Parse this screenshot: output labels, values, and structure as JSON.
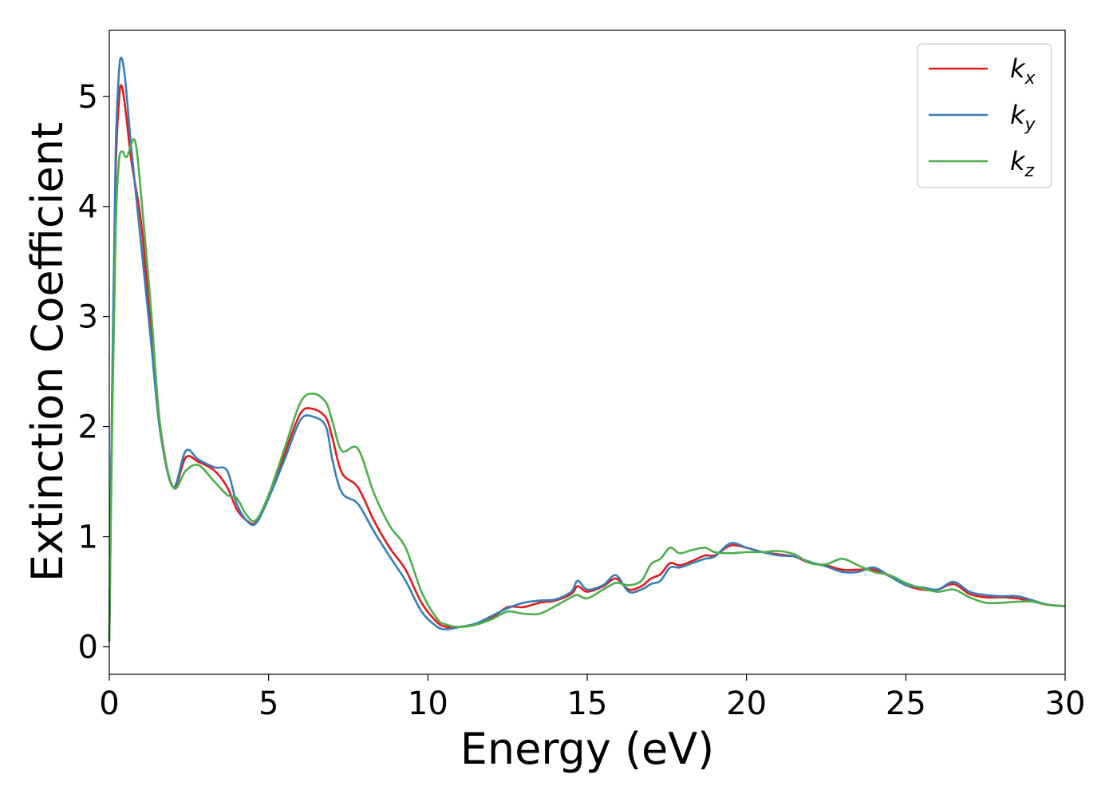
{
  "chart_data": {
    "type": "line",
    "xlabel": "Energy (eV)",
    "ylabel": "Extinction Coefficient",
    "xlim": [
      0,
      30
    ],
    "ylim": [
      -0.25,
      5.6
    ],
    "xticks": [
      "0",
      "5",
      "10",
      "15",
      "20",
      "25",
      "30"
    ],
    "yticks": [
      "0",
      "1",
      "2",
      "3",
      "4",
      "5"
    ],
    "grid": false,
    "legend_position": "top-right",
    "series": [
      {
        "name": "k_x",
        "base": "k",
        "sub": "x",
        "color": "#e41a1c",
        "x": [
          0,
          0.1,
          0.2,
          0.3,
          0.38,
          0.5,
          0.7,
          1.0,
          1.3,
          1.6,
          2.0,
          2.4,
          2.8,
          3.3,
          3.7,
          4.0,
          4.3,
          4.6,
          5.0,
          5.5,
          6.0,
          6.4,
          6.8,
          7.0,
          7.3,
          7.8,
          8.3,
          8.8,
          9.3,
          9.8,
          10.3,
          10.6,
          11.0,
          11.5,
          12.0,
          12.5,
          13.0,
          13.5,
          14.0,
          14.5,
          14.7,
          15.0,
          15.5,
          15.9,
          16.3,
          16.7,
          17.0,
          17.3,
          17.6,
          17.9,
          18.3,
          18.7,
          19.0,
          19.5,
          20.0,
          20.5,
          21.0,
          21.5,
          22.0,
          22.5,
          23.0,
          23.5,
          24.0,
          24.5,
          25.0,
          25.5,
          26.0,
          26.5,
          27.0,
          27.5,
          28.0,
          28.5,
          29.0,
          29.5,
          30.0
        ],
        "y": [
          0.05,
          2.5,
          4.3,
          4.95,
          5.1,
          4.9,
          4.4,
          3.85,
          2.9,
          2.0,
          1.45,
          1.72,
          1.68,
          1.6,
          1.45,
          1.25,
          1.15,
          1.13,
          1.35,
          1.75,
          2.12,
          2.16,
          2.08,
          1.9,
          1.58,
          1.45,
          1.15,
          0.9,
          0.7,
          0.4,
          0.22,
          0.18,
          0.18,
          0.2,
          0.26,
          0.36,
          0.36,
          0.4,
          0.42,
          0.48,
          0.55,
          0.5,
          0.55,
          0.62,
          0.52,
          0.55,
          0.62,
          0.66,
          0.76,
          0.74,
          0.78,
          0.83,
          0.83,
          0.92,
          0.9,
          0.86,
          0.84,
          0.82,
          0.76,
          0.74,
          0.7,
          0.7,
          0.7,
          0.64,
          0.56,
          0.52,
          0.52,
          0.57,
          0.48,
          0.45,
          0.45,
          0.44,
          0.41,
          0.38,
          0.37
        ]
      },
      {
        "name": "k_y",
        "base": "k",
        "sub": "y",
        "color": "#377eb8",
        "x": [
          0,
          0.1,
          0.2,
          0.3,
          0.38,
          0.5,
          0.7,
          1.0,
          1.3,
          1.6,
          2.0,
          2.4,
          2.8,
          3.3,
          3.7,
          4.0,
          4.3,
          4.6,
          5.0,
          5.5,
          6.0,
          6.4,
          6.8,
          7.0,
          7.3,
          7.8,
          8.3,
          8.8,
          9.3,
          9.8,
          10.3,
          10.6,
          11.0,
          11.5,
          12.0,
          12.5,
          13.0,
          13.5,
          14.0,
          14.5,
          14.7,
          15.0,
          15.5,
          15.9,
          16.3,
          16.7,
          17.0,
          17.3,
          17.6,
          17.9,
          18.3,
          18.7,
          19.0,
          19.5,
          20.0,
          20.5,
          21.0,
          21.5,
          22.0,
          22.5,
          23.0,
          23.5,
          24.0,
          24.5,
          25.0,
          25.5,
          26.0,
          26.5,
          27.0,
          27.5,
          28.0,
          28.5,
          29.0,
          29.5,
          30.0
        ],
        "y": [
          0.05,
          2.6,
          4.5,
          5.2,
          5.35,
          5.15,
          4.5,
          3.65,
          2.8,
          1.95,
          1.45,
          1.78,
          1.7,
          1.63,
          1.6,
          1.3,
          1.15,
          1.12,
          1.35,
          1.7,
          2.06,
          2.09,
          2.0,
          1.7,
          1.4,
          1.3,
          1.05,
          0.82,
          0.6,
          0.32,
          0.18,
          0.16,
          0.18,
          0.21,
          0.28,
          0.35,
          0.4,
          0.42,
          0.43,
          0.5,
          0.6,
          0.52,
          0.56,
          0.65,
          0.5,
          0.52,
          0.57,
          0.6,
          0.72,
          0.72,
          0.76,
          0.8,
          0.82,
          0.94,
          0.9,
          0.86,
          0.83,
          0.82,
          0.77,
          0.73,
          0.68,
          0.68,
          0.72,
          0.64,
          0.56,
          0.54,
          0.52,
          0.59,
          0.5,
          0.47,
          0.46,
          0.46,
          0.42,
          0.38,
          0.37
        ]
      },
      {
        "name": "k_z",
        "base": "k",
        "sub": "z",
        "color": "#4daf4a",
        "x": [
          0,
          0.1,
          0.2,
          0.3,
          0.4,
          0.55,
          0.8,
          1.0,
          1.3,
          1.6,
          2.0,
          2.4,
          2.8,
          3.3,
          3.7,
          4.0,
          4.3,
          4.6,
          5.0,
          5.5,
          6.0,
          6.4,
          6.8,
          7.0,
          7.3,
          7.8,
          8.3,
          8.8,
          9.3,
          9.8,
          10.3,
          10.6,
          11.0,
          11.5,
          12.0,
          12.5,
          13.0,
          13.5,
          14.0,
          14.5,
          14.7,
          15.0,
          15.5,
          15.9,
          16.3,
          16.7,
          17.0,
          17.3,
          17.6,
          17.9,
          18.3,
          18.7,
          19.0,
          19.5,
          20.0,
          20.5,
          21.0,
          21.5,
          22.0,
          22.5,
          23.0,
          23.5,
          24.0,
          24.5,
          25.0,
          25.5,
          26.0,
          26.5,
          27.0,
          27.5,
          28.0,
          28.5,
          29.0,
          29.5,
          30.0
        ],
        "y": [
          0.05,
          2.2,
          3.8,
          4.4,
          4.5,
          4.45,
          4.6,
          4.1,
          3.1,
          2.0,
          1.45,
          1.6,
          1.65,
          1.5,
          1.38,
          1.35,
          1.2,
          1.15,
          1.38,
          1.8,
          2.22,
          2.3,
          2.22,
          2.05,
          1.78,
          1.8,
          1.4,
          1.1,
          0.9,
          0.5,
          0.25,
          0.2,
          0.18,
          0.2,
          0.25,
          0.32,
          0.3,
          0.3,
          0.37,
          0.45,
          0.47,
          0.44,
          0.52,
          0.58,
          0.56,
          0.6,
          0.75,
          0.8,
          0.9,
          0.85,
          0.88,
          0.9,
          0.86,
          0.85,
          0.86,
          0.86,
          0.87,
          0.84,
          0.76,
          0.75,
          0.8,
          0.74,
          0.68,
          0.65,
          0.58,
          0.53,
          0.5,
          0.52,
          0.45,
          0.4,
          0.4,
          0.41,
          0.41,
          0.38,
          0.37
        ]
      }
    ]
  }
}
